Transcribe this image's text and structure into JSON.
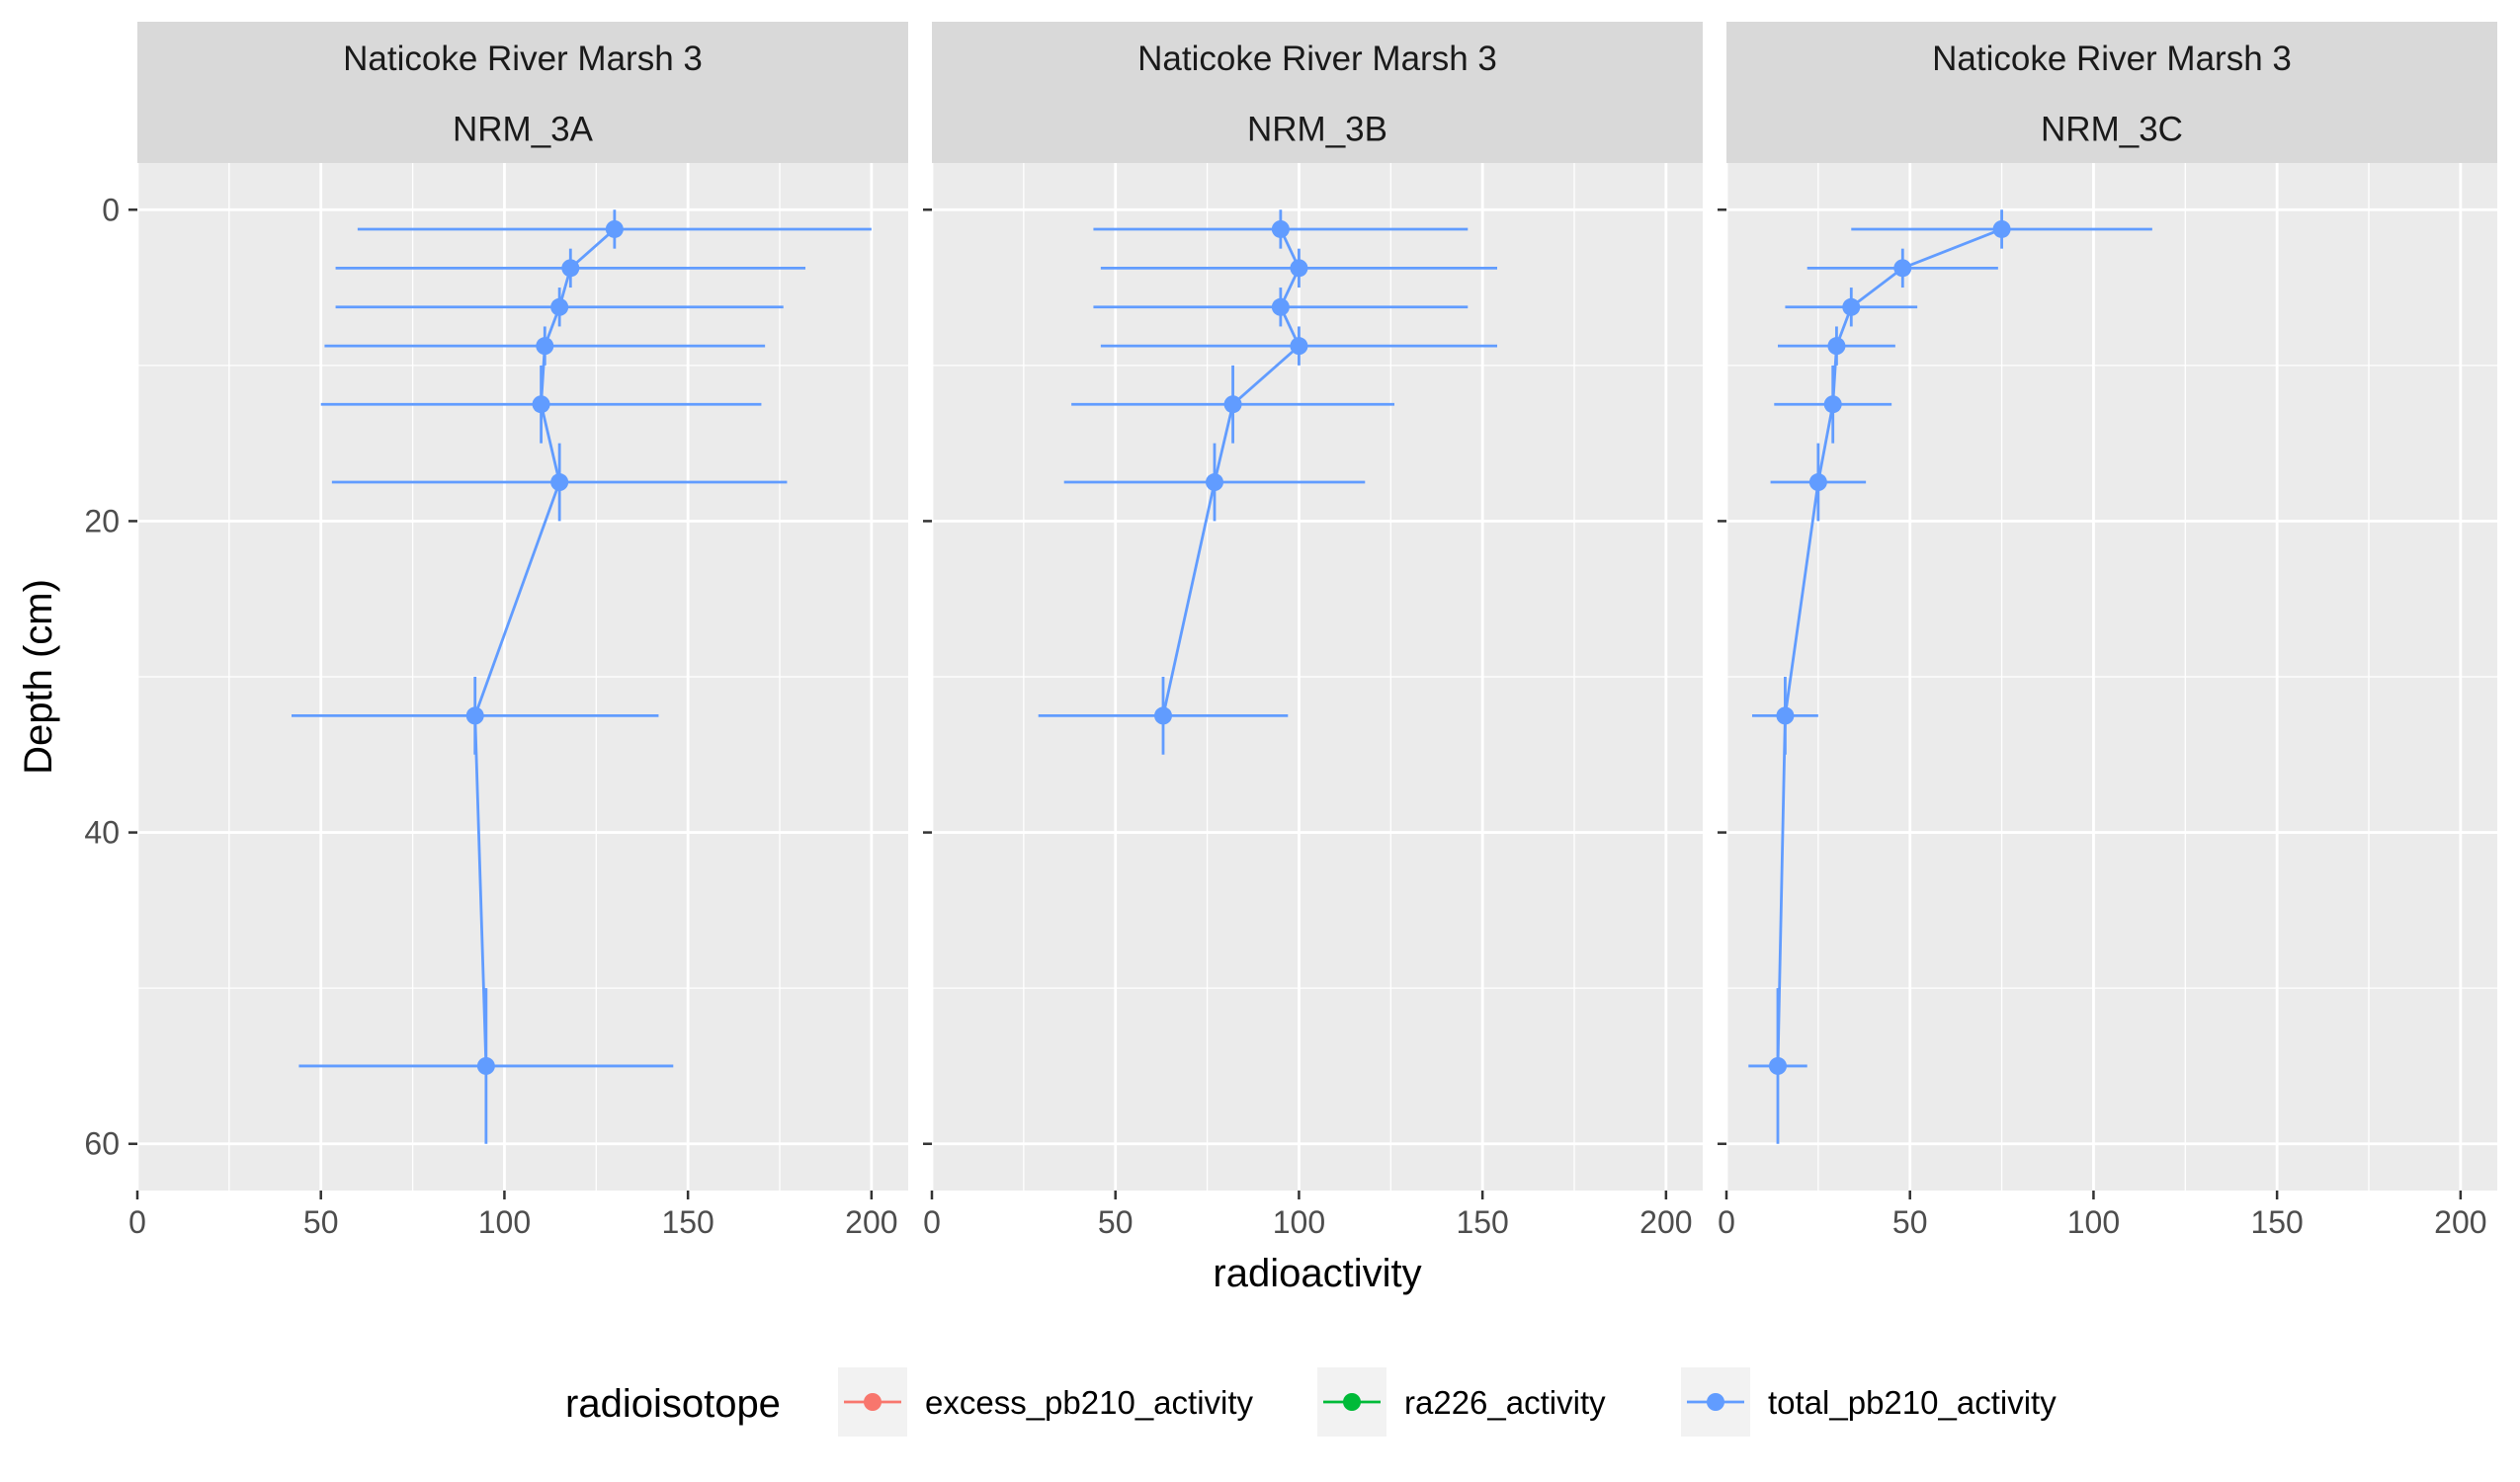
{
  "chart_data": {
    "type": "scatter",
    "xlabel": "radioactivity",
    "ylabel": "Depth (cm)",
    "xlim": [
      0,
      210
    ],
    "ylim": [
      63,
      -3
    ],
    "x_ticks": [
      0,
      50,
      100,
      150,
      200
    ],
    "y_ticks": [
      0,
      20,
      40,
      60
    ],
    "y_reversed": true,
    "grid": true,
    "legend": {
      "title": "radioisotope",
      "position": "bottom",
      "entries": [
        {
          "name": "excess_pb210_activity",
          "color": "#F8766D"
        },
        {
          "name": "ra226_activity",
          "color": "#00BA38"
        },
        {
          "name": "total_pb210_activity",
          "color": "#619CFF"
        }
      ]
    },
    "panels": [
      {
        "strip_top": "Naticoke River Marsh 3",
        "strip_bottom": "NRM_3A",
        "series": [
          {
            "name": "total_pb210_activity",
            "color": "#619CFF",
            "points": [
              {
                "x": 130,
                "y": 1.25,
                "xerr": 70,
                "ymin": 0,
                "ymax": 2.5
              },
              {
                "x": 118,
                "y": 3.75,
                "xerr": 64,
                "ymin": 2.5,
                "ymax": 5
              },
              {
                "x": 115,
                "y": 6.25,
                "xerr": 61,
                "ymin": 5,
                "ymax": 7.5
              },
              {
                "x": 111,
                "y": 8.75,
                "xerr": 60,
                "ymin": 7.5,
                "ymax": 10
              },
              {
                "x": 110,
                "y": 12.5,
                "xerr": 60,
                "ymin": 10,
                "ymax": 15
              },
              {
                "x": 115,
                "y": 17.5,
                "xerr": 62,
                "ymin": 15,
                "ymax": 20
              },
              {
                "x": 92,
                "y": 32.5,
                "xerr": 50,
                "ymin": 30,
                "ymax": 35
              },
              {
                "x": 95,
                "y": 55,
                "xerr": 51,
                "ymin": 50,
                "ymax": 60
              }
            ]
          }
        ]
      },
      {
        "strip_top": "Naticoke River Marsh 3",
        "strip_bottom": "NRM_3B",
        "series": [
          {
            "name": "total_pb210_activity",
            "color": "#619CFF",
            "points": [
              {
                "x": 95,
                "y": 1.25,
                "xerr": 51,
                "ymin": 0,
                "ymax": 2.5
              },
              {
                "x": 100,
                "y": 3.75,
                "xerr": 54,
                "ymin": 2.5,
                "ymax": 5
              },
              {
                "x": 95,
                "y": 6.25,
                "xerr": 51,
                "ymin": 5,
                "ymax": 7.5
              },
              {
                "x": 100,
                "y": 8.75,
                "xerr": 54,
                "ymin": 7.5,
                "ymax": 10
              },
              {
                "x": 82,
                "y": 12.5,
                "xerr": 44,
                "ymin": 10,
                "ymax": 15
              },
              {
                "x": 77,
                "y": 17.5,
                "xerr": 41,
                "ymin": 15,
                "ymax": 20
              },
              {
                "x": 63,
                "y": 32.5,
                "xerr": 34,
                "ymin": 30,
                "ymax": 35
              }
            ]
          }
        ]
      },
      {
        "strip_top": "Naticoke River Marsh 3",
        "strip_bottom": "NRM_3C",
        "series": [
          {
            "name": "total_pb210_activity",
            "color": "#619CFF",
            "points": [
              {
                "x": 75,
                "y": 1.25,
                "xerr": 41,
                "ymin": 0,
                "ymax": 2.5
              },
              {
                "x": 48,
                "y": 3.75,
                "xerr": 26,
                "ymin": 2.5,
                "ymax": 5
              },
              {
                "x": 34,
                "y": 6.25,
                "xerr": 18,
                "ymin": 5,
                "ymax": 7.5
              },
              {
                "x": 30,
                "y": 8.75,
                "xerr": 16,
                "ymin": 7.5,
                "ymax": 10
              },
              {
                "x": 29,
                "y": 12.5,
                "xerr": 16,
                "ymin": 10,
                "ymax": 15
              },
              {
                "x": 25,
                "y": 17.5,
                "xerr": 13,
                "ymin": 15,
                "ymax": 20
              },
              {
                "x": 16,
                "y": 32.5,
                "xerr": 9,
                "ymin": 30,
                "ymax": 35
              },
              {
                "x": 14,
                "y": 55,
                "xerr": 8,
                "ymin": 50,
                "ymax": 60
              }
            ]
          }
        ]
      }
    ]
  }
}
